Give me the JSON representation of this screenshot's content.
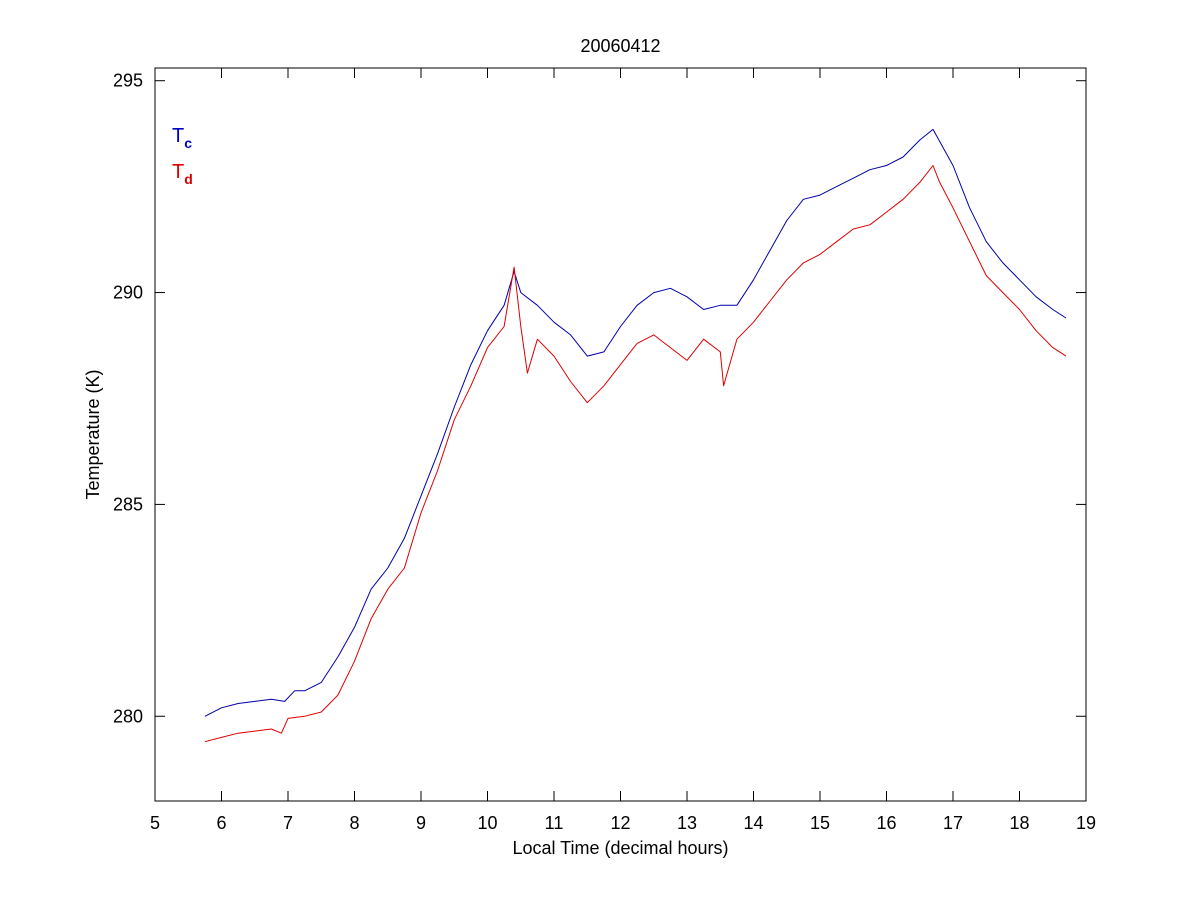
{
  "chart_data": {
    "type": "line",
    "title": "20060412",
    "xlabel": "Local Time (decimal hours)",
    "ylabel": "Temperature (K)",
    "xlim": [
      5,
      19
    ],
    "ylim": [
      278,
      295.3
    ],
    "xticks": [
      5,
      6,
      7,
      8,
      9,
      10,
      11,
      12,
      13,
      14,
      15,
      16,
      17,
      18,
      19
    ],
    "yticks": [
      280,
      285,
      290,
      295
    ],
    "grid": false,
    "legend_placement": "top-left",
    "legend": [
      {
        "main": "T",
        "sub": "c",
        "color": "#0000cc"
      },
      {
        "main": "T",
        "sub": "d",
        "color": "#dd0000"
      }
    ],
    "series": [
      {
        "color": "#0000aa",
        "x": [
          5.75,
          6.0,
          6.25,
          6.5,
          6.75,
          6.95,
          7.1,
          7.25,
          7.5,
          7.75,
          8.0,
          8.25,
          8.5,
          8.75,
          9.0,
          9.25,
          9.5,
          9.75,
          10.0,
          10.25,
          10.4,
          10.5,
          10.75,
          11.0,
          11.25,
          11.5,
          11.75,
          12.0,
          12.25,
          12.5,
          12.75,
          13.0,
          13.25,
          13.5,
          13.75,
          14.0,
          14.25,
          14.5,
          14.75,
          15.0,
          15.25,
          15.5,
          15.75,
          16.0,
          16.25,
          16.5,
          16.7,
          17.0,
          17.25,
          17.5,
          17.75,
          18.0,
          18.25,
          18.5,
          18.7
        ],
        "y": [
          280.0,
          280.2,
          280.3,
          280.35,
          280.4,
          280.35,
          280.6,
          280.6,
          280.8,
          281.4,
          282.1,
          283.0,
          283.5,
          284.2,
          285.2,
          286.2,
          287.3,
          288.3,
          289.1,
          289.7,
          290.5,
          290.0,
          289.7,
          289.3,
          289.0,
          288.5,
          288.6,
          289.2,
          289.7,
          290.0,
          290.1,
          289.9,
          289.6,
          289.7,
          289.7,
          290.3,
          291.0,
          291.7,
          292.2,
          292.3,
          292.5,
          292.7,
          292.9,
          293.0,
          293.2,
          293.6,
          293.85,
          293.0,
          292.0,
          291.2,
          290.7,
          290.3,
          289.9,
          289.6,
          289.4
        ]
      },
      {
        "color": "#dd0000",
        "x": [
          5.75,
          6.0,
          6.25,
          6.5,
          6.75,
          6.9,
          7.0,
          7.25,
          7.5,
          7.75,
          8.0,
          8.25,
          8.5,
          8.75,
          9.0,
          9.25,
          9.5,
          9.75,
          10.0,
          10.25,
          10.4,
          10.5,
          10.6,
          10.75,
          11.0,
          11.25,
          11.5,
          11.75,
          12.0,
          12.25,
          12.5,
          12.75,
          13.0,
          13.25,
          13.5,
          13.55,
          13.75,
          14.0,
          14.25,
          14.5,
          14.75,
          15.0,
          15.25,
          15.5,
          15.75,
          16.0,
          16.25,
          16.5,
          16.7,
          16.8,
          17.0,
          17.25,
          17.5,
          17.75,
          18.0,
          18.25,
          18.5,
          18.7
        ],
        "y": [
          279.4,
          279.5,
          279.6,
          279.65,
          279.7,
          279.6,
          279.95,
          280.0,
          280.1,
          280.5,
          281.3,
          282.3,
          283.0,
          283.5,
          284.8,
          285.8,
          287.0,
          287.8,
          288.7,
          289.2,
          290.6,
          289.2,
          288.1,
          288.9,
          288.5,
          287.9,
          287.4,
          287.8,
          288.3,
          288.8,
          289.0,
          288.7,
          288.4,
          288.9,
          288.6,
          287.8,
          288.9,
          289.3,
          289.8,
          290.3,
          290.7,
          290.9,
          291.2,
          291.5,
          291.6,
          291.9,
          292.2,
          292.6,
          293.0,
          292.6,
          292.0,
          291.2,
          290.4,
          290.0,
          289.6,
          289.1,
          288.7,
          288.5
        ]
      }
    ]
  }
}
